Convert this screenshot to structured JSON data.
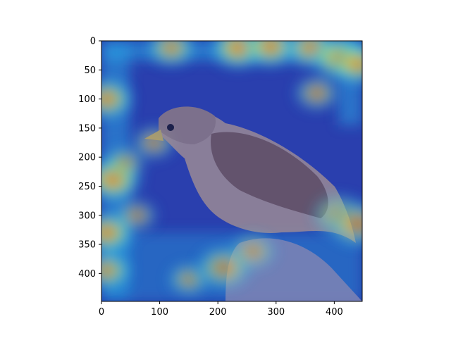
{
  "chart_data": {
    "type": "heatmap",
    "title": "",
    "xlabel": "",
    "ylabel": "",
    "xlim": [
      0,
      448
    ],
    "ylim": [
      448,
      0
    ],
    "x_ticks": [
      0,
      100,
      200,
      300,
      400
    ],
    "y_ticks": [
      0,
      50,
      100,
      150,
      200,
      250,
      300,
      350,
      400
    ],
    "x_tick_labels": [
      "0",
      "100",
      "200",
      "300",
      "400"
    ],
    "y_tick_labels": [
      "0",
      "50",
      "100",
      "150",
      "200",
      "250",
      "300",
      "350",
      "400"
    ],
    "colormap": "jet",
    "overlay": "saliency heatmap over photo of a sparrow perched on a post",
    "hotspots": [
      {
        "x": 235,
        "y": 12,
        "intensity": 0.9
      },
      {
        "x": 290,
        "y": 10,
        "intensity": 0.85
      },
      {
        "x": 360,
        "y": 12,
        "intensity": 0.8
      },
      {
        "x": 410,
        "y": 30,
        "intensity": 0.95
      },
      {
        "x": 440,
        "y": 40,
        "intensity": 0.8
      },
      {
        "x": 120,
        "y": 12,
        "intensity": 0.7
      },
      {
        "x": 10,
        "y": 100,
        "intensity": 0.8
      },
      {
        "x": 20,
        "y": 238,
        "intensity": 0.95
      },
      {
        "x": 10,
        "y": 330,
        "intensity": 0.85
      },
      {
        "x": 10,
        "y": 395,
        "intensity": 0.7
      },
      {
        "x": 90,
        "y": 175,
        "intensity": 0.55
      },
      {
        "x": 210,
        "y": 390,
        "intensity": 0.95
      },
      {
        "x": 260,
        "y": 362,
        "intensity": 0.7
      },
      {
        "x": 410,
        "y": 300,
        "intensity": 0.9
      },
      {
        "x": 440,
        "y": 315,
        "intensity": 1.0
      },
      {
        "x": 60,
        "y": 300,
        "intensity": 0.5
      },
      {
        "x": 40,
        "y": 210,
        "intensity": 0.5
      },
      {
        "x": 150,
        "y": 410,
        "intensity": 0.5
      },
      {
        "x": 370,
        "y": 90,
        "intensity": 0.6
      }
    ]
  },
  "colors": {
    "background_blue": "#2a3fae",
    "frame": "#000000",
    "bird_body": "#9a8a96",
    "bird_wing": "#6e5762",
    "bird_head": "#8b7a86",
    "perch": "#7f84b4"
  }
}
